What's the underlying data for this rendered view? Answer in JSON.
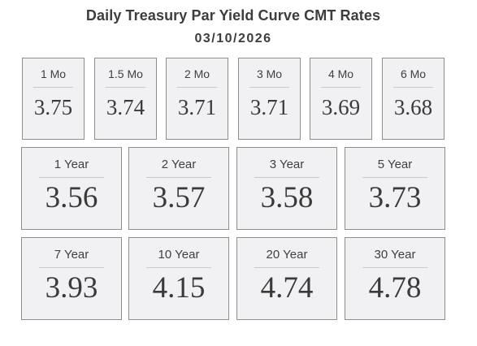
{
  "header": {
    "title": "Daily Treasury Par Yield Curve CMT Rates",
    "date": "03/10/2026"
  },
  "short_term": [
    {
      "label": "1 Mo",
      "value": "3.75"
    },
    {
      "label": "1.5 Mo",
      "value": "3.74"
    },
    {
      "label": "2 Mo",
      "value": "3.71"
    },
    {
      "label": "3 Mo",
      "value": "3.71"
    },
    {
      "label": "4 Mo",
      "value": "3.69"
    },
    {
      "label": "6 Mo",
      "value": "3.68"
    }
  ],
  "mid_term": [
    {
      "label": "1 Year",
      "value": "3.56"
    },
    {
      "label": "2 Year",
      "value": "3.57"
    },
    {
      "label": "3 Year",
      "value": "3.58"
    },
    {
      "label": "5 Year",
      "value": "3.73"
    }
  ],
  "long_term": [
    {
      "label": "7 Year",
      "value": "3.93"
    },
    {
      "label": "10 Year",
      "value": "4.15"
    },
    {
      "label": "20 Year",
      "value": "4.74"
    },
    {
      "label": "30 Year",
      "value": "4.78"
    }
  ]
}
